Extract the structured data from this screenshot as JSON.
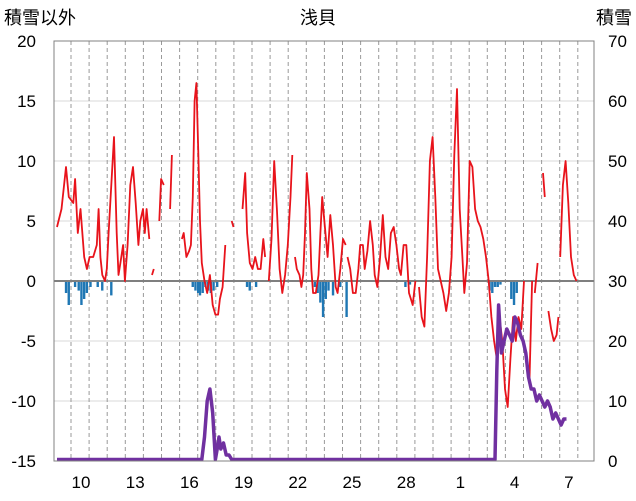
{
  "titles": {
    "left": "積雪以外",
    "center": "浅貝",
    "right": "積雪"
  },
  "chart_data": {
    "type": "line+bar",
    "title": "浅貝",
    "left_axis": {
      "label": "積雪以外",
      "ylim": [
        -15,
        20
      ],
      "ticks": [
        20,
        15,
        10,
        5,
        0,
        -5,
        -10,
        -15
      ]
    },
    "right_axis": {
      "label": "積雪",
      "ylim": [
        0,
        70
      ],
      "ticks": [
        70,
        60,
        50,
        40,
        30,
        20,
        10,
        0
      ]
    },
    "x_tick_labels": [
      "10",
      "13",
      "16",
      "19",
      "22",
      "25",
      "28",
      "1",
      "4",
      "7"
    ],
    "x_range_days": [
      0,
      30
    ],
    "grid": "dashed vertical daily",
    "colors": {
      "temperature": "#e8131b",
      "precipitation": "#1f77b4",
      "snow_depth": "#7030a0"
    },
    "temperature": [
      [
        0.0,
        4.5
      ],
      [
        0.5,
        6.0
      ],
      [
        1.0,
        9.5
      ],
      [
        1.3,
        7.0
      ],
      [
        1.8,
        6.5
      ],
      [
        2.0,
        8.5
      ],
      [
        2.3,
        4.0
      ],
      [
        2.6,
        6.0
      ],
      [
        3.0,
        2.0
      ],
      [
        3.3,
        1.0
      ],
      [
        3.6,
        2.0
      ],
      [
        4.0,
        2.0
      ],
      [
        4.4,
        3.0
      ],
      [
        4.6,
        6.0
      ],
      [
        4.8,
        2.0
      ],
      [
        5.0,
        0.5
      ],
      [
        5.3,
        0.0
      ],
      [
        5.5,
        1.0
      ],
      [
        5.7,
        4.0
      ],
      [
        6.0,
        8.0
      ],
      [
        6.3,
        12.0
      ],
      [
        6.6,
        4.0
      ],
      [
        6.8,
        0.5
      ]
    ],
    "temperature_segments": [
      [
        [
          0.0,
          4.5
        ],
        [
          0.5,
          6.0
        ],
        [
          1.0,
          9.5
        ],
        [
          1.3,
          7.0
        ],
        [
          1.8,
          6.5
        ],
        [
          2.0,
          8.5
        ],
        [
          2.3,
          4.0
        ],
        [
          2.6,
          6.0
        ],
        [
          3.0,
          2.0
        ],
        [
          3.3,
          1.0
        ],
        [
          3.6,
          2.0
        ],
        [
          4.0,
          2.0
        ],
        [
          4.4,
          3.0
        ],
        [
          4.6,
          6.0
        ],
        [
          4.8,
          2.0
        ],
        [
          5.0,
          0.5
        ],
        [
          5.3,
          0.0
        ],
        [
          5.5,
          1.0
        ],
        [
          5.7,
          4.0
        ],
        [
          6.0,
          8.0
        ],
        [
          6.3,
          12.0
        ],
        [
          6.6,
          4.0
        ],
        [
          6.8,
          0.5
        ],
        [
          7.0,
          1.5
        ],
        [
          7.3,
          3.0
        ],
        [
          7.5,
          0.0
        ],
        [
          7.8,
          3.0
        ],
        [
          8.1,
          8.0
        ],
        [
          8.4,
          9.5
        ],
        [
          8.7,
          6.5
        ],
        [
          9.0,
          3.0
        ],
        [
          9.2,
          5.0
        ],
        [
          9.5,
          6.0
        ],
        [
          9.7,
          4.0
        ],
        [
          9.9,
          6.0
        ],
        [
          10.2,
          3.5
        ]
      ],
      [
        [
          10.5,
          0.5
        ],
        [
          10.7,
          1.0
        ]
      ],
      [
        [
          11.3,
          5.0
        ],
        [
          11.5,
          8.5
        ],
        [
          11.8,
          8.0
        ]
      ],
      [
        [
          12.5,
          6.0
        ],
        [
          12.7,
          10.5
        ]
      ],
      [
        [
          13.8,
          3.5
        ],
        [
          14.0,
          4.0
        ],
        [
          14.3,
          2.0
        ],
        [
          14.6,
          2.5
        ],
        [
          14.8,
          3.0
        ],
        [
          15.0,
          7.0
        ],
        [
          15.2,
          15.0
        ],
        [
          15.4,
          16.5
        ],
        [
          15.6,
          11.0
        ],
        [
          15.8,
          5.0
        ],
        [
          16.0,
          1.5
        ],
        [
          16.3,
          0.0
        ],
        [
          16.6,
          -1.0
        ],
        [
          16.9,
          0.5
        ],
        [
          17.2,
          -2.0
        ],
        [
          17.5,
          -2.8
        ],
        [
          17.8,
          -2.8
        ],
        [
          18.0,
          -1.5
        ],
        [
          18.3,
          -0.5
        ],
        [
          18.6,
          3.0
        ]
      ],
      [
        [
          19.3,
          5.0
        ],
        [
          19.5,
          4.5
        ]
      ],
      [
        [
          20.5,
          6.0
        ],
        [
          20.8,
          9.0
        ],
        [
          21.0,
          4.0
        ],
        [
          21.3,
          1.5
        ],
        [
          21.6,
          1.0
        ],
        [
          21.9,
          2.0
        ],
        [
          22.2,
          1.0
        ],
        [
          22.5,
          1.0
        ],
        [
          22.8,
          3.5
        ],
        [
          23.0,
          2.0
        ]
      ],
      [
        [
          23.4,
          0.0
        ],
        [
          23.7,
          3.5
        ],
        [
          24.0,
          10.0
        ],
        [
          24.3,
          6.0
        ],
        [
          24.6,
          1.0
        ],
        [
          24.9,
          -1.0
        ],
        [
          25.2,
          0.5
        ],
        [
          25.5,
          3.0
        ],
        [
          25.8,
          7.0
        ],
        [
          26.0,
          10.5
        ]
      ],
      [
        [
          26.3,
          2.0
        ],
        [
          26.5,
          1.0
        ],
        [
          26.8,
          0.5
        ],
        [
          27.0,
          -0.5
        ],
        [
          27.2,
          0.5
        ],
        [
          27.4,
          4.0
        ],
        [
          27.6,
          9.0
        ],
        [
          27.9,
          6.0
        ],
        [
          28.1,
          1.0
        ],
        [
          28.3,
          -1.0
        ],
        [
          28.6,
          -1.0
        ],
        [
          28.9,
          0.5
        ],
        [
          29.1,
          4.0
        ],
        [
          29.3,
          7.0
        ],
        [
          29.6,
          4.5
        ],
        [
          29.9,
          2.0
        ],
        [
          30.2,
          5.5
        ],
        [
          30.5,
          3.0
        ],
        [
          30.8,
          -0.5
        ],
        [
          31.0,
          -1.0
        ],
        [
          31.3,
          1.0
        ],
        [
          31.6,
          3.5
        ],
        [
          31.9,
          3.0
        ]
      ],
      [
        [
          32.1,
          2.0
        ],
        [
          32.4,
          1.0
        ],
        [
          32.7,
          -1.0
        ],
        [
          33.0,
          -1.0
        ],
        [
          33.3,
          1.0
        ],
        [
          33.5,
          3.0
        ],
        [
          33.8,
          3.0
        ],
        [
          34.0,
          1.0
        ],
        [
          34.3,
          2.5
        ],
        [
          34.6,
          5.0
        ],
        [
          34.9,
          3.0
        ],
        [
          35.1,
          0.5
        ],
        [
          35.4,
          -0.5
        ],
        [
          35.7,
          2.0
        ],
        [
          36.0,
          5.5
        ],
        [
          36.3,
          2.0
        ],
        [
          36.6,
          1.0
        ],
        [
          36.9,
          4.0
        ],
        [
          37.2,
          4.5
        ],
        [
          37.5,
          3.0
        ],
        [
          37.8,
          1.0
        ],
        [
          38.0,
          0.5
        ],
        [
          38.3,
          3.0
        ],
        [
          38.6,
          3.0
        ],
        [
          38.9,
          -1.0
        ],
        [
          39.1,
          -1.5
        ],
        [
          39.3,
          -2.0
        ],
        [
          39.6,
          0.0
        ]
      ],
      [
        [
          40.0,
          -0.5
        ],
        [
          40.3,
          -3.0
        ],
        [
          40.6,
          -3.8
        ],
        [
          40.9,
          2.0
        ],
        [
          41.2,
          10.0
        ],
        [
          41.5,
          12.0
        ],
        [
          41.8,
          7.0
        ],
        [
          42.1,
          1.0
        ],
        [
          42.4,
          0.0
        ],
        [
          42.7,
          -1.0
        ],
        [
          43.0,
          -2.5
        ],
        [
          43.3,
          -1.0
        ],
        [
          43.6,
          2.0
        ],
        [
          43.9,
          10.5
        ],
        [
          44.2,
          16.0
        ],
        [
          44.5,
          6.0
        ],
        [
          44.8,
          2.0
        ],
        [
          45.0,
          -1.0
        ],
        [
          45.3,
          1.5
        ],
        [
          45.6,
          10.0
        ],
        [
          45.9,
          9.5
        ],
        [
          46.2,
          6.0
        ],
        [
          46.5,
          5.0
        ],
        [
          46.8,
          4.5
        ],
        [
          47.1,
          3.5
        ],
        [
          47.4,
          2.0
        ],
        [
          47.7,
          0.0
        ],
        [
          48.0,
          -3.0
        ],
        [
          48.3,
          -5.0
        ],
        [
          48.6,
          -6.5
        ],
        [
          48.9,
          -3.0
        ],
        [
          49.2,
          -5.0
        ],
        [
          49.5,
          -9.0
        ],
        [
          49.8,
          -10.5
        ],
        [
          50.1,
          -6.5
        ],
        [
          50.4,
          -3.0
        ],
        [
          50.7,
          -5.0
        ],
        [
          51.0,
          -3.0
        ],
        [
          51.3,
          -4.0
        ],
        [
          51.6,
          0.0
        ]
      ],
      [
        [
          52.2,
          -8.5
        ],
        [
          52.5,
          0.0
        ]
      ],
      [
        [
          52.8,
          -1.0
        ],
        [
          53.1,
          1.5
        ]
      ],
      [
        [
          53.7,
          9.0
        ],
        [
          53.9,
          7.0
        ]
      ],
      [
        [
          54.3,
          -2.5
        ],
        [
          54.6,
          -4.0
        ],
        [
          54.9,
          -5.0
        ],
        [
          55.2,
          -4.5
        ],
        [
          55.4,
          -3.0
        ]
      ],
      [
        [
          55.6,
          2.0
        ],
        [
          55.9,
          8.0
        ],
        [
          56.2,
          10.0
        ],
        [
          56.5,
          6.5
        ],
        [
          56.8,
          2.0
        ],
        [
          57.1,
          0.5
        ],
        [
          57.4,
          0.0
        ]
      ]
    ],
    "precipitation": [
      [
        1.0,
        -1.0
      ],
      [
        1.3,
        -2.0
      ],
      [
        2.0,
        -0.5
      ],
      [
        2.4,
        -0.8
      ],
      [
        2.7,
        -2.0
      ],
      [
        3.0,
        -1.5
      ],
      [
        3.3,
        -1.0
      ],
      [
        3.7,
        -0.5
      ],
      [
        4.5,
        -0.5
      ],
      [
        5.0,
        -0.8
      ],
      [
        6.0,
        -1.2
      ],
      [
        15.0,
        -0.5
      ],
      [
        15.3,
        -0.8
      ],
      [
        15.6,
        -1.0
      ],
      [
        15.8,
        -1.2
      ],
      [
        16.1,
        -1.0
      ],
      [
        16.4,
        -0.5
      ],
      [
        16.7,
        -0.8
      ],
      [
        17.0,
        -1.0
      ],
      [
        17.3,
        -0.8
      ],
      [
        17.7,
        -0.5
      ],
      [
        21.0,
        -0.5
      ],
      [
        21.3,
        -0.8
      ],
      [
        22.0,
        -0.5
      ],
      [
        28.5,
        -0.5
      ],
      [
        28.8,
        -1.0
      ],
      [
        29.1,
        -1.8
      ],
      [
        29.4,
        -3.0
      ],
      [
        29.7,
        -1.5
      ],
      [
        30.0,
        -0.8
      ],
      [
        30.5,
        -1.2
      ],
      [
        31.3,
        -0.5
      ],
      [
        32.0,
        -3.0
      ],
      [
        38.5,
        -0.5
      ],
      [
        39.0,
        -0.3
      ],
      [
        47.8,
        -0.8
      ],
      [
        48.1,
        -1.0
      ],
      [
        48.4,
        -0.5
      ],
      [
        48.7,
        -0.5
      ],
      [
        49.0,
        -0.3
      ],
      [
        50.2,
        -1.5
      ],
      [
        50.5,
        -2.0
      ],
      [
        50.8,
        -1.0
      ]
    ],
    "snow_depth": [
      [
        0.0,
        0
      ],
      [
        16.0,
        0
      ],
      [
        16.3,
        4
      ],
      [
        16.6,
        10
      ],
      [
        16.9,
        12
      ],
      [
        17.2,
        8
      ],
      [
        17.5,
        0
      ],
      [
        17.7,
        2
      ],
      [
        17.9,
        4
      ],
      [
        18.1,
        2
      ],
      [
        18.4,
        3
      ],
      [
        18.7,
        1
      ],
      [
        19.0,
        1
      ],
      [
        19.3,
        0
      ],
      [
        48.4,
        0
      ],
      [
        48.6,
        15
      ],
      [
        48.8,
        26
      ],
      [
        49.1,
        18
      ],
      [
        49.4,
        20
      ],
      [
        49.7,
        22
      ],
      [
        50.0,
        21
      ],
      [
        50.3,
        20
      ],
      [
        50.6,
        24
      ],
      [
        50.9,
        23
      ],
      [
        51.2,
        21
      ],
      [
        51.5,
        20
      ],
      [
        51.8,
        18
      ],
      [
        52.1,
        14
      ],
      [
        52.4,
        12
      ],
      [
        52.7,
        12
      ],
      [
        53.0,
        10
      ],
      [
        53.3,
        11
      ],
      [
        53.6,
        10
      ],
      [
        53.9,
        9
      ],
      [
        54.2,
        10
      ],
      [
        54.5,
        9
      ],
      [
        54.8,
        7
      ],
      [
        55.1,
        8
      ],
      [
        55.4,
        7
      ],
      [
        55.7,
        6
      ],
      [
        56.0,
        7
      ],
      [
        56.3,
        7
      ]
    ]
  }
}
